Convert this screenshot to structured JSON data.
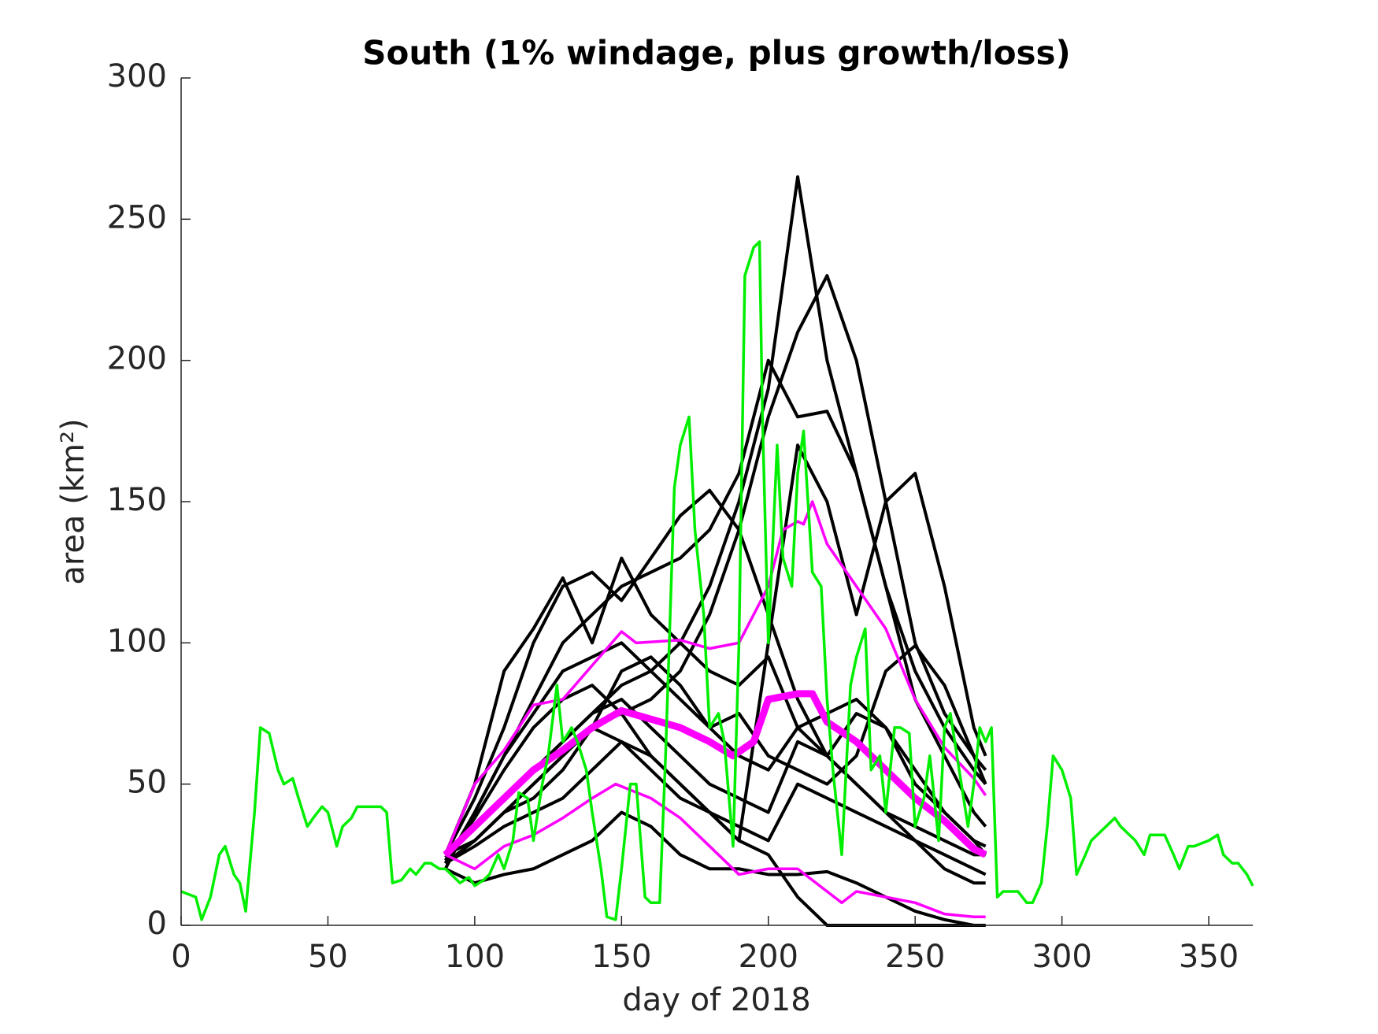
{
  "chart_data": {
    "type": "line",
    "title": "South (1% windage, plus growth/loss)",
    "xlabel": "day of 2018",
    "ylabel": "area (km²)",
    "xlim": [
      0,
      365
    ],
    "ylim": [
      0,
      300
    ],
    "xticks": [
      0,
      50,
      100,
      150,
      200,
      250,
      300,
      350
    ],
    "yticks": [
      0,
      50,
      100,
      150,
      200,
      250,
      300
    ],
    "grid": false,
    "series": [
      {
        "color": "#000000",
        "linewidth": 4,
        "x": [
          90,
          100,
          110,
          120,
          130,
          140,
          150,
          160,
          170,
          180,
          190,
          200,
          210,
          220,
          230,
          240,
          250,
          260,
          270,
          274
        ],
        "values": [
          25,
          35,
          45,
          55,
          65,
          75,
          85,
          90,
          100,
          120,
          150,
          190,
          265,
          200,
          160,
          120,
          90,
          70,
          55,
          50
        ]
      },
      {
        "color": "#000000",
        "linewidth": 4,
        "x": [
          90,
          100,
          110,
          120,
          130,
          140,
          150,
          160,
          170,
          180,
          190,
          200,
          210,
          220,
          230,
          240,
          250,
          260,
          270,
          274
        ],
        "values": [
          22,
          30,
          40,
          50,
          60,
          70,
          75,
          80,
          90,
          110,
          140,
          180,
          210,
          230,
          200,
          150,
          100,
          75,
          60,
          55
        ]
      },
      {
        "color": "#000000",
        "linewidth": 4,
        "x": [
          90,
          100,
          110,
          120,
          130,
          140,
          150,
          160,
          170,
          180,
          190,
          200,
          210,
          220,
          230,
          240,
          250,
          260,
          270,
          274
        ],
        "values": [
          20,
          40,
          60,
          80,
          100,
          110,
          120,
          125,
          130,
          140,
          160,
          200,
          180,
          182,
          160,
          120,
          80,
          60,
          40,
          35
        ]
      },
      {
        "color": "#000000",
        "linewidth": 4,
        "x": [
          90,
          100,
          110,
          120,
          130,
          140,
          150,
          160,
          170,
          180,
          190,
          200,
          210,
          220,
          230,
          240,
          250,
          260,
          270,
          274
        ],
        "values": [
          25,
          45,
          70,
          100,
          120,
          125,
          115,
          130,
          145,
          154,
          140,
          110,
          80,
          60,
          50,
          40,
          35,
          30,
          25,
          25
        ]
      },
      {
        "color": "#000000",
        "linewidth": 4,
        "x": [
          90,
          100,
          110,
          120,
          130,
          140,
          150,
          160,
          170,
          180,
          190,
          200,
          210,
          220,
          230,
          240,
          250,
          260,
          270,
          274
        ],
        "values": [
          25,
          50,
          90,
          105,
          123,
          100,
          130,
          110,
          100,
          90,
          85,
          95,
          70,
          60,
          75,
          70,
          55,
          40,
          30,
          25
        ]
      },
      {
        "color": "#000000",
        "linewidth": 4,
        "x": [
          90,
          100,
          110,
          120,
          130,
          140,
          150,
          160,
          170,
          180,
          190,
          200,
          210,
          220,
          230,
          240,
          250,
          260,
          270,
          274
        ],
        "values": [
          22,
          40,
          60,
          75,
          90,
          95,
          100,
          90,
          80,
          70,
          75,
          60,
          55,
          50,
          60,
          90,
          99,
          85,
          60,
          50
        ]
      },
      {
        "color": "#000000",
        "linewidth": 4,
        "x": [
          90,
          100,
          110,
          120,
          130,
          140,
          150,
          160,
          170,
          180,
          190,
          200,
          210,
          220,
          230,
          240,
          250,
          260,
          270,
          274
        ],
        "values": [
          20,
          15,
          18,
          20,
          25,
          30,
          40,
          35,
          25,
          20,
          20,
          18,
          18,
          19,
          15,
          10,
          5,
          2,
          0,
          0
        ]
      },
      {
        "color": "#000000",
        "linewidth": 4,
        "x": [
          90,
          100,
          110,
          120,
          130,
          140,
          150,
          160,
          170,
          180,
          190,
          200,
          210,
          220,
          230,
          240,
          250,
          260,
          270,
          274
        ],
        "values": [
          22,
          30,
          40,
          50,
          60,
          70,
          65,
          55,
          45,
          40,
          30,
          25,
          10,
          0,
          0,
          0,
          0,
          0,
          0,
          0
        ]
      },
      {
        "color": "#000000",
        "linewidth": 4,
        "x": [
          90,
          100,
          110,
          120,
          130,
          140,
          150,
          160,
          170,
          180,
          190,
          200,
          210,
          220,
          230,
          240,
          250,
          260,
          270,
          274
        ],
        "values": [
          24,
          35,
          45,
          55,
          65,
          75,
          80,
          70,
          60,
          50,
          45,
          40,
          65,
          60,
          50,
          40,
          30,
          20,
          15,
          15
        ]
      },
      {
        "color": "#000000",
        "linewidth": 4,
        "x": [
          90,
          100,
          110,
          120,
          130,
          140,
          150,
          160,
          170,
          180,
          190,
          200,
          210,
          220,
          230,
          240,
          250,
          260,
          270,
          274
        ],
        "values": [
          25,
          30,
          40,
          45,
          55,
          70,
          90,
          95,
          85,
          70,
          60,
          55,
          70,
          75,
          80,
          70,
          50,
          40,
          30,
          28
        ]
      },
      {
        "color": "#000000",
        "linewidth": 4,
        "x": [
          90,
          100,
          110,
          120,
          130,
          140,
          150,
          160,
          170,
          180,
          190,
          200,
          210,
          220,
          230,
          240,
          250,
          260,
          270,
          274
        ],
        "values": [
          23,
          38,
          55,
          70,
          80,
          85,
          75,
          60,
          50,
          40,
          30,
          100,
          170,
          150,
          110,
          150,
          160,
          120,
          70,
          60
        ]
      },
      {
        "color": "#000000",
        "linewidth": 4,
        "x": [
          90,
          100,
          110,
          120,
          130,
          140,
          150,
          160,
          170,
          180,
          190,
          200,
          210,
          220,
          230,
          240,
          250,
          260,
          270,
          274
        ],
        "values": [
          22,
          28,
          35,
          40,
          45,
          55,
          65,
          60,
          50,
          40,
          35,
          30,
          50,
          45,
          40,
          35,
          30,
          25,
          20,
          18
        ]
      },
      {
        "color": "#ff00ff",
        "linewidth": 3.5,
        "x": [
          90,
          100,
          110,
          120,
          130,
          140,
          150,
          155,
          170,
          180,
          190,
          200,
          205,
          210,
          212,
          215,
          220,
          230,
          240,
          250,
          260,
          270,
          274
        ],
        "values": [
          25,
          50,
          62,
          78,
          80,
          92,
          104,
          100,
          101,
          98,
          100,
          120,
          140,
          143,
          142,
          150,
          135,
          120,
          105,
          80,
          63,
          52,
          46
        ]
      },
      {
        "color": "#ff00ff",
        "linewidth": 3.5,
        "x": [
          90,
          100,
          110,
          120,
          130,
          140,
          148,
          160,
          170,
          180,
          190,
          200,
          210,
          220,
          225,
          230,
          240,
          250,
          260,
          270,
          274
        ],
        "values": [
          25,
          20,
          28,
          32,
          38,
          45,
          50,
          45,
          38,
          28,
          18,
          20,
          20,
          12,
          8,
          12,
          10,
          8,
          4,
          3,
          3
        ]
      },
      {
        "color": "#ff00ff",
        "linewidth": 9,
        "x": [
          90,
          100,
          110,
          120,
          130,
          140,
          150,
          160,
          170,
          180,
          188,
          195,
          200,
          210,
          215,
          220,
          230,
          240,
          250,
          260,
          270,
          274
        ],
        "values": [
          25,
          35,
          45,
          55,
          62,
          70,
          76,
          73,
          70,
          65,
          60,
          65,
          80,
          82,
          82,
          72,
          65,
          55,
          45,
          37,
          27,
          25
        ]
      },
      {
        "color": "#00ee00",
        "linewidth": 3.5,
        "x": [
          0,
          5,
          7,
          10,
          13,
          15,
          18,
          20,
          22,
          25,
          27,
          30,
          33,
          35,
          38,
          40,
          43,
          45,
          48,
          50,
          53,
          55,
          58,
          60,
          63,
          65,
          68,
          70,
          72,
          75,
          78,
          80,
          83,
          85,
          88,
          90,
          93,
          95,
          98,
          100,
          103,
          105,
          108,
          110,
          113,
          115,
          118,
          120,
          123,
          125,
          128,
          130,
          133,
          135,
          138,
          140,
          143,
          145,
          148,
          150,
          153,
          155,
          158,
          160,
          163,
          165,
          168,
          170,
          173,
          175,
          178,
          180,
          183,
          185,
          188,
          190,
          192,
          195,
          197,
          198,
          200,
          203,
          205,
          208,
          210,
          212,
          215,
          218,
          220,
          222,
          225,
          228,
          230,
          233,
          235,
          238,
          240,
          243,
          245,
          248,
          250,
          253,
          255,
          258,
          260,
          262,
          265,
          268,
          270,
          272,
          274,
          276,
          278,
          280,
          285,
          288,
          290,
          293,
          295,
          297,
          300,
          303,
          305,
          308,
          310,
          315,
          318,
          320,
          325,
          328,
          330,
          335,
          338,
          340,
          343,
          345,
          350,
          353,
          355,
          358,
          360,
          363,
          365
        ],
        "values": [
          12,
          10,
          2,
          10,
          25,
          28,
          18,
          15,
          5,
          40,
          70,
          68,
          55,
          50,
          52,
          45,
          35,
          38,
          42,
          40,
          28,
          35,
          38,
          42,
          42,
          42,
          42,
          40,
          15,
          16,
          20,
          18,
          22,
          22,
          20,
          20,
          17,
          15,
          17,
          14,
          16,
          18,
          25,
          20,
          30,
          47,
          45,
          30,
          50,
          60,
          85,
          65,
          70,
          65,
          55,
          40,
          20,
          3,
          2,
          20,
          50,
          50,
          10,
          8,
          8,
          60,
          155,
          170,
          180,
          140,
          110,
          70,
          75,
          65,
          28,
          100,
          230,
          240,
          242,
          180,
          100,
          170,
          130,
          120,
          160,
          175,
          125,
          120,
          80,
          55,
          25,
          85,
          95,
          105,
          55,
          60,
          40,
          70,
          70,
          68,
          35,
          45,
          60,
          30,
          70,
          75,
          55,
          35,
          50,
          70,
          65,
          70,
          10,
          12,
          12,
          8,
          8,
          15,
          35,
          60,
          55,
          45,
          18,
          25,
          30,
          35,
          38,
          35,
          30,
          25,
          32,
          32,
          25,
          20,
          28,
          28,
          30,
          32,
          25,
          22,
          22,
          18,
          14
        ]
      }
    ]
  }
}
